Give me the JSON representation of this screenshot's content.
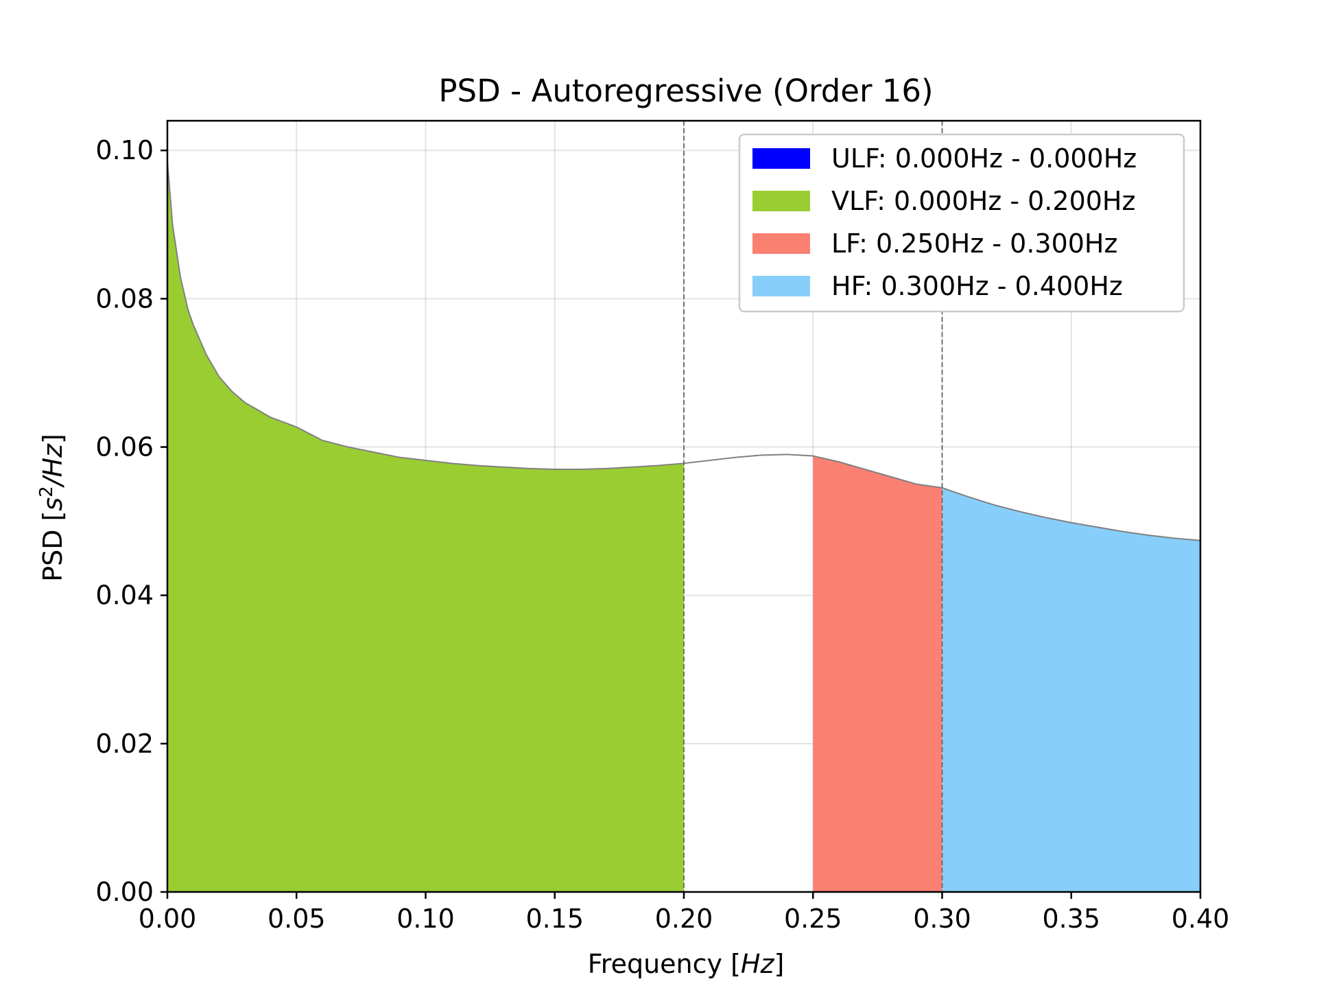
{
  "chart_data": {
    "type": "area",
    "title": "PSD - Autoregressive (Order 16)",
    "xlabel": "Frequency",
    "xlabel_unit": "Hz",
    "ylabel": "PSD",
    "ylabel_unit_base": "s",
    "ylabel_unit_exp": "2",
    "ylabel_unit_rest": "/Hz",
    "xlim": [
      0,
      0.4
    ],
    "ylim": [
      0,
      0.104
    ],
    "x_ticks": [
      "0.00",
      "0.05",
      "0.10",
      "0.15",
      "0.20",
      "0.25",
      "0.30",
      "0.35",
      "0.40"
    ],
    "y_ticks": [
      "0.00",
      "0.02",
      "0.04",
      "0.06",
      "0.08",
      "0.10"
    ],
    "grid": true,
    "legend_position": "top-right",
    "curve": {
      "x": [
        0.0,
        0.002,
        0.005,
        0.008,
        0.01,
        0.015,
        0.02,
        0.025,
        0.03,
        0.04,
        0.05,
        0.06,
        0.07,
        0.08,
        0.09,
        0.1,
        0.11,
        0.12,
        0.13,
        0.14,
        0.15,
        0.16,
        0.17,
        0.18,
        0.19,
        0.2,
        0.21,
        0.22,
        0.23,
        0.24,
        0.25,
        0.26,
        0.27,
        0.28,
        0.29,
        0.3,
        0.31,
        0.32,
        0.33,
        0.34,
        0.35,
        0.36,
        0.37,
        0.38,
        0.39,
        0.4
      ],
      "y": [
        0.0985,
        0.09,
        0.083,
        0.0785,
        0.0765,
        0.0725,
        0.0695,
        0.0675,
        0.066,
        0.064,
        0.0627,
        0.0609,
        0.06,
        0.0593,
        0.0586,
        0.0582,
        0.0578,
        0.0575,
        0.0573,
        0.0571,
        0.057,
        0.057,
        0.0571,
        0.0573,
        0.0575,
        0.0578,
        0.0582,
        0.0586,
        0.0589,
        0.059,
        0.0588,
        0.058,
        0.057,
        0.056,
        0.055,
        0.0545,
        0.0533,
        0.0522,
        0.0513,
        0.0505,
        0.0498,
        0.0492,
        0.0486,
        0.0481,
        0.0477,
        0.0474
      ]
    },
    "bands": [
      {
        "name": "ULF: 0.000Hz - 0.000Hz",
        "range": [
          0.0,
          0.0
        ],
        "color": "#0000ff"
      },
      {
        "name": "VLF: 0.000Hz - 0.200Hz",
        "range": [
          0.0,
          0.2
        ],
        "color": "#9acd32"
      },
      {
        "name": "LF: 0.250Hz - 0.300Hz",
        "range": [
          0.25,
          0.3
        ],
        "color": "#fa8072"
      },
      {
        "name": "HF: 0.300Hz - 0.400Hz",
        "range": [
          0.3,
          0.4
        ],
        "color": "#87cefa"
      }
    ],
    "vlines": [
      0.2,
      0.3
    ],
    "line_color": "#808080"
  }
}
